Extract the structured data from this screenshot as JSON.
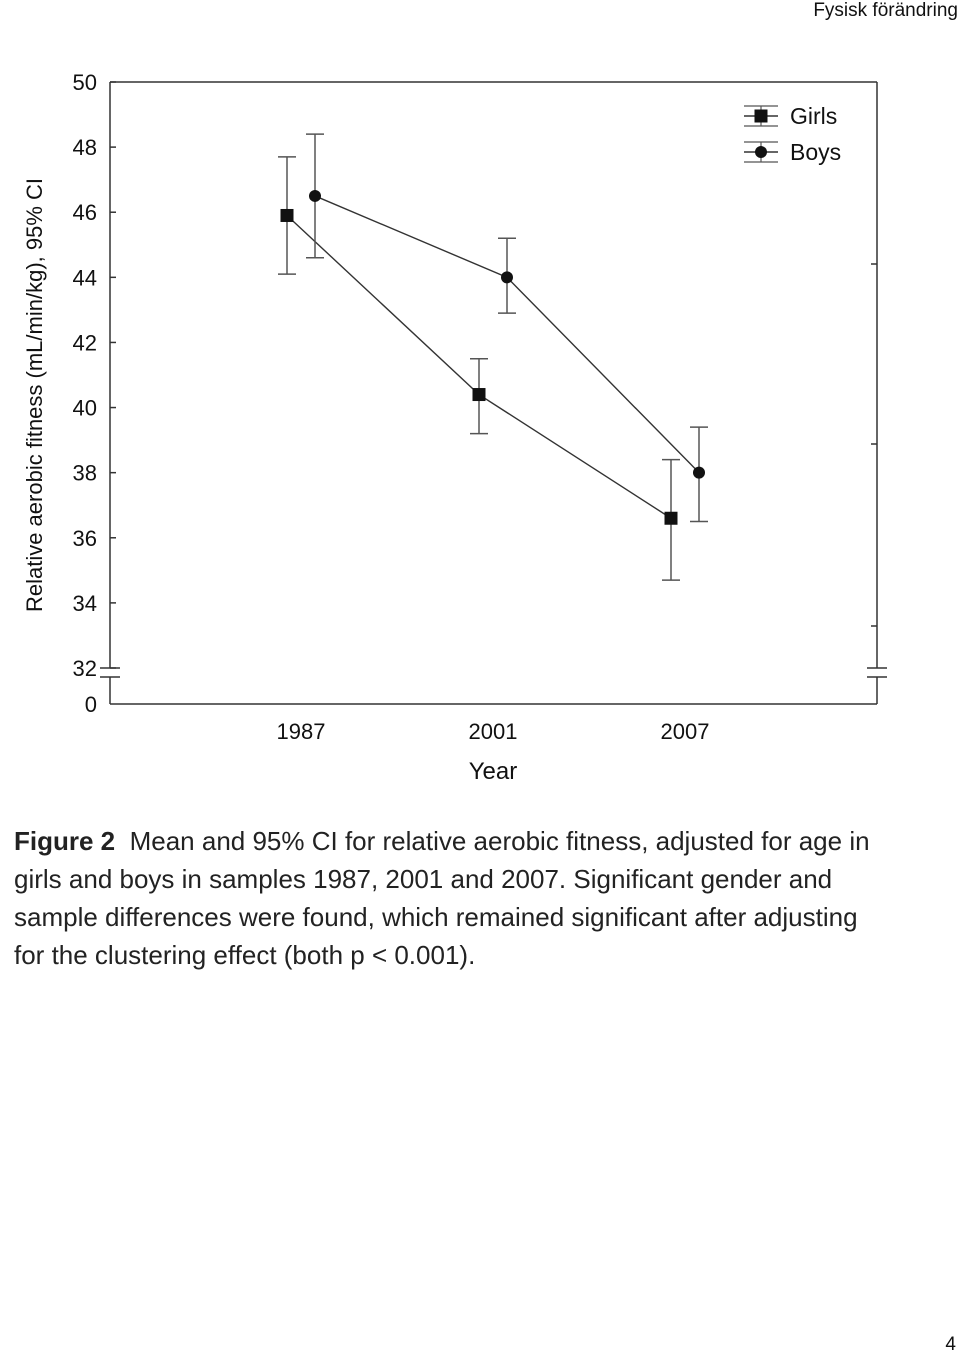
{
  "header": {
    "title": "Fysisk förändring"
  },
  "chart_data": {
    "type": "line",
    "x": [
      1987,
      2001,
      2007
    ],
    "categories": [
      "1987",
      "2001",
      "2007"
    ],
    "xlabel": "Year",
    "ylabel": "Relative aerobic fitness (mL/min/kg), 95% CI",
    "ylim": [
      32,
      50
    ],
    "y_ticks": [
      "32",
      "34",
      "36",
      "38",
      "40",
      "42",
      "44",
      "46",
      "48",
      "50"
    ],
    "y_axis_break": "0",
    "legend_position": "top-right",
    "series": [
      {
        "name": "Girls",
        "marker": "square",
        "values": [
          45.9,
          40.4,
          36.6
        ],
        "ci_low": [
          44.1,
          39.2,
          34.7
        ],
        "ci_high": [
          47.7,
          41.5,
          38.4
        ]
      },
      {
        "name": "Boys",
        "marker": "circle",
        "values": [
          46.5,
          44.0,
          38.0
        ],
        "ci_low": [
          44.6,
          42.9,
          36.5
        ],
        "ci_high": [
          48.4,
          45.2,
          39.4
        ]
      }
    ]
  },
  "caption": {
    "label": "Figure 2",
    "text": "Mean and 95% CI for relative aerobic fitness, adjusted for age in girls and boys in samples 1987, 2001 and 2007. Significant gender and sample differences were found, which remained significant after adjusting for the clustering effect (both p < 0.001)."
  },
  "page_number": "4"
}
